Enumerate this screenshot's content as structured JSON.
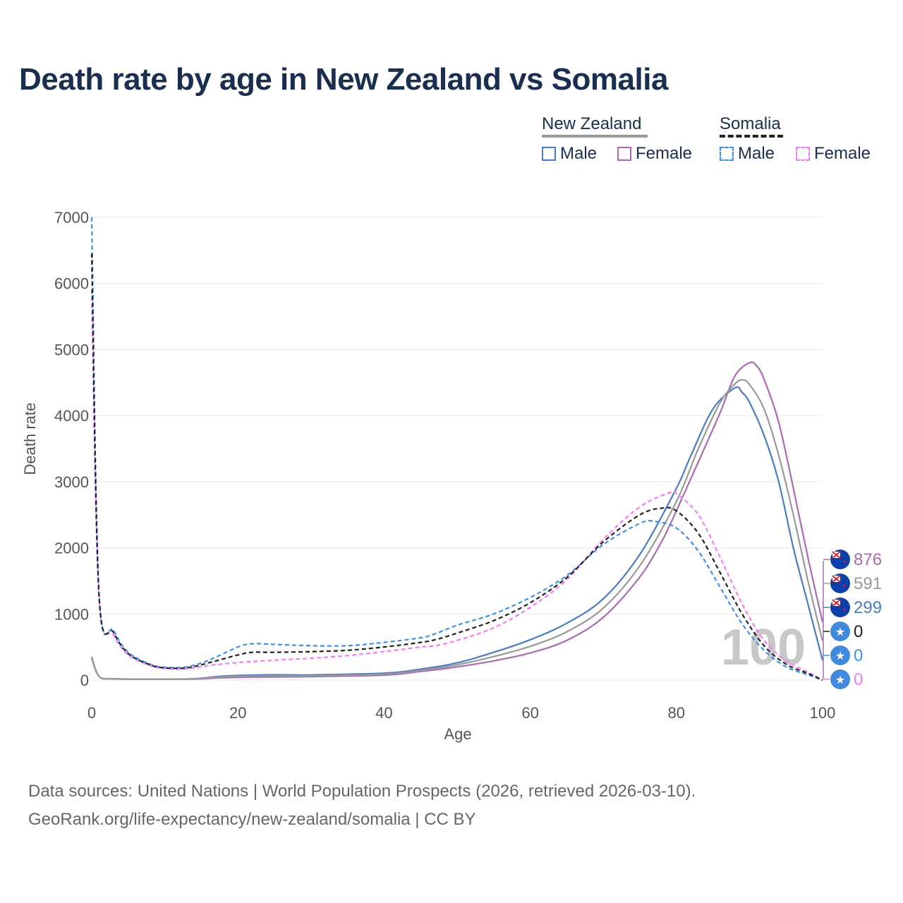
{
  "title": "Death rate by age in New Zealand vs Somalia",
  "legend": {
    "group1": "New Zealand",
    "group2": "Somalia",
    "male": "Male",
    "female": "Female"
  },
  "source_line1": "Data sources: United Nations | World Population Prospects (2026, retrieved 2026-03-10).",
  "source_line2": "GeoRank.org/life-expectancy/new-zealand/somalia | CC BY",
  "hover_age": "100",
  "colors": {
    "nz_male": "#4a7cc0",
    "nz_female": "#a86bb0",
    "nz_total": "#999999",
    "so_male": "#3f8ee8",
    "so_female": "#f47cf0",
    "so_total": "#222222",
    "grid": "#e6e6e6",
    "axis_text": "#555555"
  },
  "end_labels": [
    {
      "text": "876",
      "series": "NZ Female",
      "flag": "nz-flag-icon",
      "color": "#a86bb0"
    },
    {
      "text": "591",
      "series": "NZ Total",
      "flag": "nz-flag-icon",
      "color": "#999999"
    },
    {
      "text": "299",
      "series": "NZ Male",
      "flag": "nz-flag-icon",
      "color": "#4a7cc0"
    },
    {
      "text": "0",
      "series": "Somalia Total",
      "flag": "somalia-flag-icon",
      "color": "#222222"
    },
    {
      "text": "0",
      "series": "Somalia Male",
      "flag": "somalia-flag-icon",
      "color": "#3f8ee8"
    },
    {
      "text": "0",
      "series": "Somalia Female",
      "flag": "somalia-flag-icon",
      "color": "#f47cf0"
    }
  ],
  "chart_data": {
    "type": "line",
    "title": "Death rate by age in New Zealand vs Somalia",
    "xlabel": "Age",
    "ylabel": "Death rate",
    "xlim": [
      0,
      100
    ],
    "ylim": [
      0,
      7000
    ],
    "xticks": [
      0,
      20,
      40,
      60,
      80,
      100
    ],
    "yticks": [
      0,
      1000,
      2000,
      3000,
      4000,
      5000,
      6000,
      7000
    ],
    "grid": true,
    "legend_position": "top-right",
    "series": [
      {
        "name": "New Zealand Male",
        "key": "nz_male",
        "dash": "solid",
        "points": [
          [
            0,
            350
          ],
          [
            1,
            60
          ],
          [
            3,
            20
          ],
          [
            10,
            15
          ],
          [
            14,
            20
          ],
          [
            18,
            60
          ],
          [
            22,
            75
          ],
          [
            26,
            80
          ],
          [
            30,
            78
          ],
          [
            40,
            105
          ],
          [
            45,
            165
          ],
          [
            50,
            260
          ],
          [
            55,
            420
          ],
          [
            60,
            610
          ],
          [
            65,
            860
          ],
          [
            70,
            1230
          ],
          [
            75,
            1900
          ],
          [
            80,
            2900
          ],
          [
            82,
            3400
          ],
          [
            85,
            4100
          ],
          [
            88,
            4420
          ],
          [
            89,
            4350
          ],
          [
            90,
            4200
          ],
          [
            92,
            3700
          ],
          [
            94,
            3000
          ],
          [
            96,
            2000
          ],
          [
            98,
            1150
          ],
          [
            100,
            299
          ]
        ]
      },
      {
        "name": "New Zealand Female",
        "key": "nz_female",
        "dash": "solid",
        "points": [
          [
            0,
            330
          ],
          [
            1,
            55
          ],
          [
            3,
            18
          ],
          [
            10,
            14
          ],
          [
            14,
            16
          ],
          [
            18,
            35
          ],
          [
            22,
            45
          ],
          [
            26,
            48
          ],
          [
            30,
            52
          ],
          [
            40,
            75
          ],
          [
            45,
            130
          ],
          [
            50,
            200
          ],
          [
            55,
            290
          ],
          [
            60,
            410
          ],
          [
            65,
            600
          ],
          [
            70,
            950
          ],
          [
            75,
            1560
          ],
          [
            78,
            2100
          ],
          [
            80,
            2560
          ],
          [
            83,
            3300
          ],
          [
            86,
            4050
          ],
          [
            88,
            4600
          ],
          [
            90,
            4800
          ],
          [
            91,
            4750
          ],
          [
            92,
            4550
          ],
          [
            94,
            3900
          ],
          [
            96,
            2900
          ],
          [
            98,
            1850
          ],
          [
            100,
            876
          ]
        ]
      },
      {
        "name": "New Zealand Total",
        "key": "nz_total",
        "dash": "solid",
        "points": [
          [
            0,
            340
          ],
          [
            1,
            58
          ],
          [
            3,
            19
          ],
          [
            10,
            14
          ],
          [
            14,
            18
          ],
          [
            18,
            48
          ],
          [
            22,
            60
          ],
          [
            26,
            65
          ],
          [
            30,
            65
          ],
          [
            40,
            90
          ],
          [
            45,
            148
          ],
          [
            50,
            230
          ],
          [
            55,
            355
          ],
          [
            60,
            510
          ],
          [
            65,
            730
          ],
          [
            70,
            1090
          ],
          [
            75,
            1730
          ],
          [
            80,
            2700
          ],
          [
            83,
            3500
          ],
          [
            86,
            4200
          ],
          [
            88,
            4480
          ],
          [
            89,
            4540
          ],
          [
            90,
            4470
          ],
          [
            92,
            4100
          ],
          [
            94,
            3400
          ],
          [
            96,
            2500
          ],
          [
            98,
            1500
          ],
          [
            100,
            591
          ]
        ]
      },
      {
        "name": "Somalia Male",
        "key": "so_male",
        "dash": "dash",
        "points": [
          [
            0,
            7000
          ],
          [
            1,
            1300
          ],
          [
            3,
            750
          ],
          [
            5,
            420
          ],
          [
            8,
            240
          ],
          [
            10,
            195
          ],
          [
            13,
            200
          ],
          [
            16,
            300
          ],
          [
            20,
            500
          ],
          [
            22,
            550
          ],
          [
            25,
            540
          ],
          [
            30,
            520
          ],
          [
            35,
            520
          ],
          [
            40,
            570
          ],
          [
            45,
            640
          ],
          [
            47,
            700
          ],
          [
            50,
            830
          ],
          [
            55,
            1000
          ],
          [
            60,
            1250
          ],
          [
            65,
            1580
          ],
          [
            70,
            2050
          ],
          [
            75,
            2370
          ],
          [
            77,
            2400
          ],
          [
            80,
            2300
          ],
          [
            83,
            1950
          ],
          [
            86,
            1400
          ],
          [
            89,
            850
          ],
          [
            92,
            450
          ],
          [
            95,
            200
          ],
          [
            98,
            80
          ],
          [
            100,
            0
          ]
        ]
      },
      {
        "name": "Somalia Female",
        "key": "so_female",
        "dash": "dash",
        "points": [
          [
            0,
            5900
          ],
          [
            1,
            1250
          ],
          [
            3,
            680
          ],
          [
            5,
            380
          ],
          [
            8,
            220
          ],
          [
            10,
            175
          ],
          [
            13,
            170
          ],
          [
            16,
            220
          ],
          [
            20,
            265
          ],
          [
            25,
            300
          ],
          [
            30,
            330
          ],
          [
            35,
            370
          ],
          [
            40,
            430
          ],
          [
            45,
            500
          ],
          [
            47,
            520
          ],
          [
            50,
            600
          ],
          [
            55,
            790
          ],
          [
            60,
            1100
          ],
          [
            65,
            1520
          ],
          [
            70,
            2130
          ],
          [
            75,
            2620
          ],
          [
            79,
            2830
          ],
          [
            80,
            2820
          ],
          [
            83,
            2500
          ],
          [
            86,
            1850
          ],
          [
            89,
            1150
          ],
          [
            92,
            600
          ],
          [
            95,
            290
          ],
          [
            98,
            120
          ],
          [
            100,
            0
          ]
        ]
      },
      {
        "name": "Somalia Total",
        "key": "so_total",
        "dash": "dash",
        "points": [
          [
            0,
            6450
          ],
          [
            1,
            1280
          ],
          [
            3,
            720
          ],
          [
            5,
            400
          ],
          [
            8,
            230
          ],
          [
            10,
            185
          ],
          [
            13,
            185
          ],
          [
            16,
            260
          ],
          [
            20,
            380
          ],
          [
            22,
            420
          ],
          [
            25,
            420
          ],
          [
            30,
            430
          ],
          [
            35,
            450
          ],
          [
            40,
            500
          ],
          [
            45,
            570
          ],
          [
            47,
            610
          ],
          [
            50,
            710
          ],
          [
            55,
            900
          ],
          [
            60,
            1170
          ],
          [
            65,
            1550
          ],
          [
            70,
            2090
          ],
          [
            75,
            2500
          ],
          [
            78,
            2600
          ],
          [
            80,
            2560
          ],
          [
            83,
            2220
          ],
          [
            86,
            1620
          ],
          [
            89,
            1000
          ],
          [
            92,
            520
          ],
          [
            95,
            240
          ],
          [
            98,
            100
          ],
          [
            100,
            0
          ]
        ]
      }
    ]
  }
}
